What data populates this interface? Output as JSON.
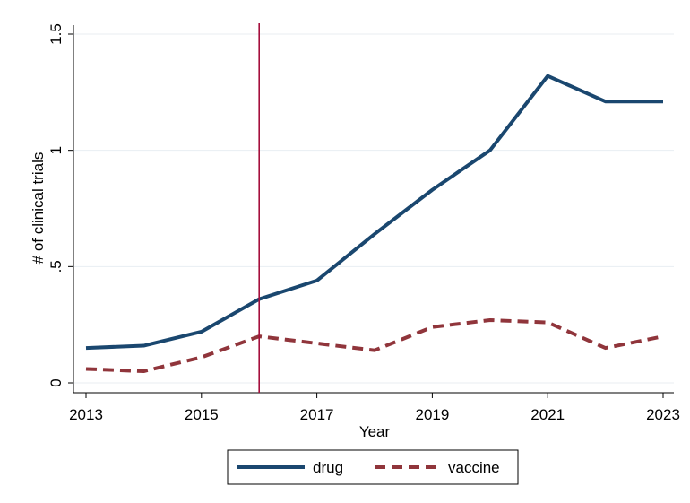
{
  "chart_data": {
    "type": "line",
    "xlabel": "Year",
    "ylabel": "# of clinical trials",
    "x": [
      2013,
      2014,
      2015,
      2016,
      2017,
      2018,
      2019,
      2020,
      2021,
      2022,
      2023
    ],
    "x_ticks": [
      "2013",
      "2015",
      "2017",
      "2019",
      "2021",
      "2023"
    ],
    "y_ticks": [
      "0",
      ".5",
      "1",
      "1.5"
    ],
    "xlim": [
      2013,
      2023
    ],
    "ylim": [
      0,
      1.5
    ],
    "grid": "horizontal",
    "legend_position": "bottom",
    "vertical_reference_line": 2016,
    "series": [
      {
        "name": "drug",
        "color": "#1a476f",
        "style": "solid",
        "values": [
          0.15,
          0.16,
          0.22,
          0.36,
          0.44,
          0.64,
          0.83,
          1.0,
          1.32,
          1.21,
          1.21
        ]
      },
      {
        "name": "vaccine",
        "color": "#90353b",
        "style": "dashed",
        "values": [
          0.06,
          0.05,
          0.11,
          0.2,
          0.17,
          0.14,
          0.24,
          0.27,
          0.26,
          0.15,
          0.2
        ]
      }
    ],
    "reference_line_color": "#a50f3c"
  }
}
